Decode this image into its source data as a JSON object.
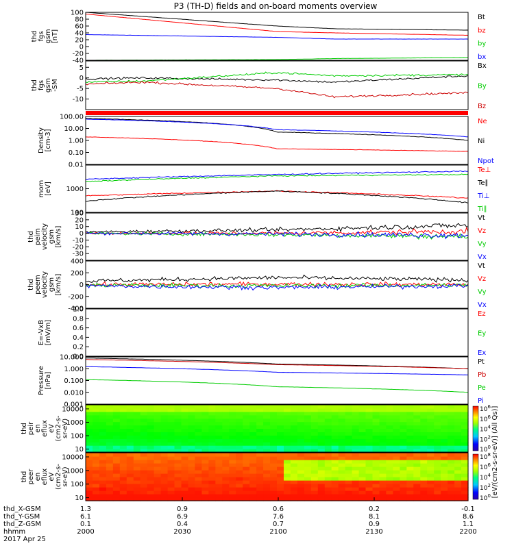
{
  "title": "P3 (TH-D) fields and on-board moments overview",
  "chart_data": [
    {
      "type": "line",
      "ylabel": [
        "thd",
        "fgs",
        "gsm",
        "[nT]"
      ],
      "ylim": [
        -40,
        100
      ],
      "yticks": [
        "100",
        "80",
        "60",
        "40",
        "20",
        "0",
        "-20",
        "-40"
      ],
      "series": [
        {
          "name": "Bt",
          "color": "#000000",
          "x": [
            2000,
            2100,
            2130,
            2200
          ],
          "y": [
            100,
            60,
            52,
            48
          ]
        },
        {
          "name": "bz",
          "color": "#ff0000",
          "x": [
            2000,
            2100,
            2130,
            2200
          ],
          "y": [
            95,
            44,
            40,
            33
          ]
        },
        {
          "name": "by",
          "color": "#00cc00",
          "x": [
            2000,
            2100,
            2130,
            2200
          ],
          "y": [
            -40,
            -38,
            -35,
            -32
          ]
        },
        {
          "name": "bx",
          "color": "#0000ff",
          "x": [
            2000,
            2100,
            2130,
            2200
          ],
          "y": [
            35,
            27,
            22,
            22
          ]
        }
      ]
    },
    {
      "type": "line",
      "ylabel": [
        "thd",
        "fgs",
        "gsm",
        "-SM"
      ],
      "ylim": [
        -15,
        8
      ],
      "yticks": [
        "5",
        "0",
        "-5",
        "-10"
      ],
      "series": [
        {
          "name": "Bx",
          "color": "#000000",
          "x": [
            2000,
            2030,
            2100,
            2130,
            2200
          ],
          "y": [
            -0.5,
            0,
            -1,
            -2,
            1
          ]
        },
        {
          "name": "By",
          "color": "#00cc00",
          "x": [
            2000,
            2030,
            2100,
            2130,
            2200
          ],
          "y": [
            -2,
            -1.5,
            2.5,
            1,
            1.5
          ]
        },
        {
          "name": "Bz",
          "color": "#cc0000",
          "x": [
            2000,
            2030,
            2100,
            2130,
            2200
          ],
          "y": [
            -3,
            -2,
            -5,
            -9,
            -7
          ]
        }
      ]
    },
    {
      "type": "line",
      "ylabel": [
        "Density",
        "[cm-3]"
      ],
      "scale": "log",
      "ylim": [
        0.01,
        100
      ],
      "yticks": [
        "100.00",
        "10.00",
        "1.00",
        "0.10",
        "0.01"
      ],
      "series": [
        {
          "name": "Ne",
          "color": "#ff0000",
          "x": [
            2000,
            2100,
            2200
          ],
          "y": [
            2,
            0.2,
            0.12
          ]
        },
        {
          "name": "Ni",
          "color": "#000000",
          "x": [
            2000,
            2100,
            2200
          ],
          "y": [
            70,
            5,
            1
          ]
        },
        {
          "name": "Npot",
          "color": "#0000ff",
          "x": [
            2000,
            2100,
            2200
          ],
          "y": [
            60,
            8,
            2
          ]
        }
      ]
    },
    {
      "type": "line",
      "ylabel": [
        "mom",
        "[eV]"
      ],
      "scale": "log",
      "ylim": [
        100,
        10000
      ],
      "yticks": [
        "1000",
        "100"
      ],
      "series": [
        {
          "name": "Te⊥",
          "color": "#ff0000",
          "x": [
            2000,
            2100,
            2200
          ],
          "y": [
            500,
            800,
            400
          ]
        },
        {
          "name": "Te∥",
          "color": "#000000",
          "x": [
            2000,
            2100,
            2200
          ],
          "y": [
            300,
            800,
            250
          ]
        },
        {
          "name": "Ti⊥",
          "color": "#0000ff",
          "x": [
            2000,
            2100,
            2200
          ],
          "y": [
            2500,
            4000,
            5500
          ]
        },
        {
          "name": "Ti∥",
          "color": "#00cc00",
          "x": [
            2000,
            2100,
            2200
          ],
          "y": [
            2000,
            3500,
            4000
          ]
        }
      ]
    },
    {
      "type": "line",
      "ylabel": [
        "thd",
        "peim",
        "velocity",
        "gsm",
        "[km/s]"
      ],
      "ylim": [
        -40,
        30
      ],
      "yticks": [
        "30",
        "20",
        "10",
        "0",
        "-10",
        "-20",
        "-30"
      ],
      "series": [
        {
          "name": "Vt",
          "color": "#000000",
          "x": [
            2000,
            2100,
            2200
          ],
          "y": [
            2,
            5,
            12
          ]
        },
        {
          "name": "Vz",
          "color": "#ff0000",
          "x": [
            2000,
            2100,
            2200
          ],
          "y": [
            0,
            0,
            3
          ]
        },
        {
          "name": "Vy",
          "color": "#00cc00",
          "x": [
            2000,
            2100,
            2200
          ],
          "y": [
            0,
            -2,
            -5
          ]
        },
        {
          "name": "Vx",
          "color": "#0000ff",
          "x": [
            2000,
            2100,
            2200
          ],
          "y": [
            0,
            -1,
            -3
          ]
        }
      ]
    },
    {
      "type": "line",
      "ylabel": [
        "thd",
        "peem",
        "velocity",
        "gsm",
        "[km/s]"
      ],
      "ylim": [
        -400,
        400
      ],
      "yticks": [
        "400",
        "200",
        "0",
        "-200",
        "-400"
      ],
      "series": [
        {
          "name": "Vt",
          "color": "#000000",
          "x": [
            2000,
            2100,
            2200
          ],
          "y": [
            60,
            120,
            80
          ]
        },
        {
          "name": "Vz",
          "color": "#ff0000",
          "x": [
            2000,
            2100,
            2200
          ],
          "y": [
            0,
            10,
            0
          ]
        },
        {
          "name": "Vy",
          "color": "#00cc00",
          "x": [
            2000,
            2100,
            2200
          ],
          "y": [
            -10,
            -20,
            -10
          ]
        },
        {
          "name": "Vx",
          "color": "#0000ff",
          "x": [
            2000,
            2100,
            2200
          ],
          "y": [
            -20,
            -50,
            -20
          ]
        }
      ]
    },
    {
      "type": "line",
      "ylabel": [
        "E=-VxB",
        "[mV/m]"
      ],
      "ylim": [
        0,
        1
      ],
      "yticks": [
        "1.0",
        "0.8",
        "0.6",
        "0.4",
        "0.2",
        "0.0"
      ],
      "series": [
        {
          "name": "Ez",
          "color": "#ff0000",
          "x": [],
          "y": []
        },
        {
          "name": "Ey",
          "color": "#00cc00",
          "x": [],
          "y": []
        },
        {
          "name": "Ex",
          "color": "#0000ff",
          "x": [],
          "y": []
        }
      ]
    },
    {
      "type": "line",
      "ylabel": [
        "Pressure",
        "[nPa]"
      ],
      "scale": "log",
      "ylim": [
        0.001,
        10
      ],
      "yticks": [
        "10.000",
        "1.000",
        "0.100",
        "0.010",
        "0.001"
      ],
      "series": [
        {
          "name": "Pt",
          "color": "#000000",
          "x": [
            2000,
            2100,
            2200
          ],
          "y": [
            8,
            2.5,
            1
          ]
        },
        {
          "name": "Pb",
          "color": "#cc0000",
          "x": [
            2000,
            2100,
            2200
          ],
          "y": [
            6,
            2.2,
            1
          ]
        },
        {
          "name": "Pe",
          "color": "#00cc00",
          "x": [
            2000,
            2100,
            2200
          ],
          "y": [
            0.12,
            0.03,
            0.01
          ]
        },
        {
          "name": "Pi",
          "color": "#0000ff",
          "x": [
            2000,
            2100,
            2200
          ],
          "y": [
            1.5,
            0.5,
            0.3
          ]
        }
      ]
    },
    {
      "type": "heatmap",
      "ylabel": [
        "thd",
        "peir",
        "en",
        "eflux",
        "eV",
        "(cm2-s-",
        "sr-eV)"
      ],
      "scale": "log",
      "ylim": [
        6,
        20000
      ],
      "yticks": [
        "10000",
        "1000",
        "100",
        "10"
      ],
      "colorbar": {
        "labels": [
          "10^6",
          "10^6",
          "10^4",
          "10^2",
          "10^0"
        ]
      }
    },
    {
      "type": "heatmap",
      "ylabel": [
        "thd",
        "peer",
        "en",
        "eflux",
        "eV",
        "(cm2-s-",
        "sr-eV)"
      ],
      "scale": "log",
      "ylim": [
        6,
        20000
      ],
      "yticks": [
        "10000",
        "1000",
        "100",
        "10"
      ],
      "colorbar": {
        "labels": [
          "10^8",
          "10^6",
          "10^4",
          "10^2",
          "10^0"
        ]
      }
    }
  ],
  "colorbar_title": "[eV/(cm2-s-sr-eV)] (All Qs)]",
  "footer": {
    "rows": [
      {
        "label": "thd_X-GSM",
        "values": [
          "1.3",
          "0.9",
          "0.6",
          "0.2",
          "-0.1"
        ]
      },
      {
        "label": "thd_Y-GSM",
        "values": [
          "6.1",
          "6.9",
          "7.6",
          "8.1",
          "8.6"
        ]
      },
      {
        "label": "thd_Z-GSM",
        "values": [
          "0.1",
          "0.4",
          "0.7",
          "0.9",
          "1.1"
        ]
      },
      {
        "label": "hhmm",
        "values": [
          "2000",
          "2030",
          "2100",
          "2130",
          "2200"
        ]
      }
    ],
    "date": "2017 Apr 25"
  }
}
